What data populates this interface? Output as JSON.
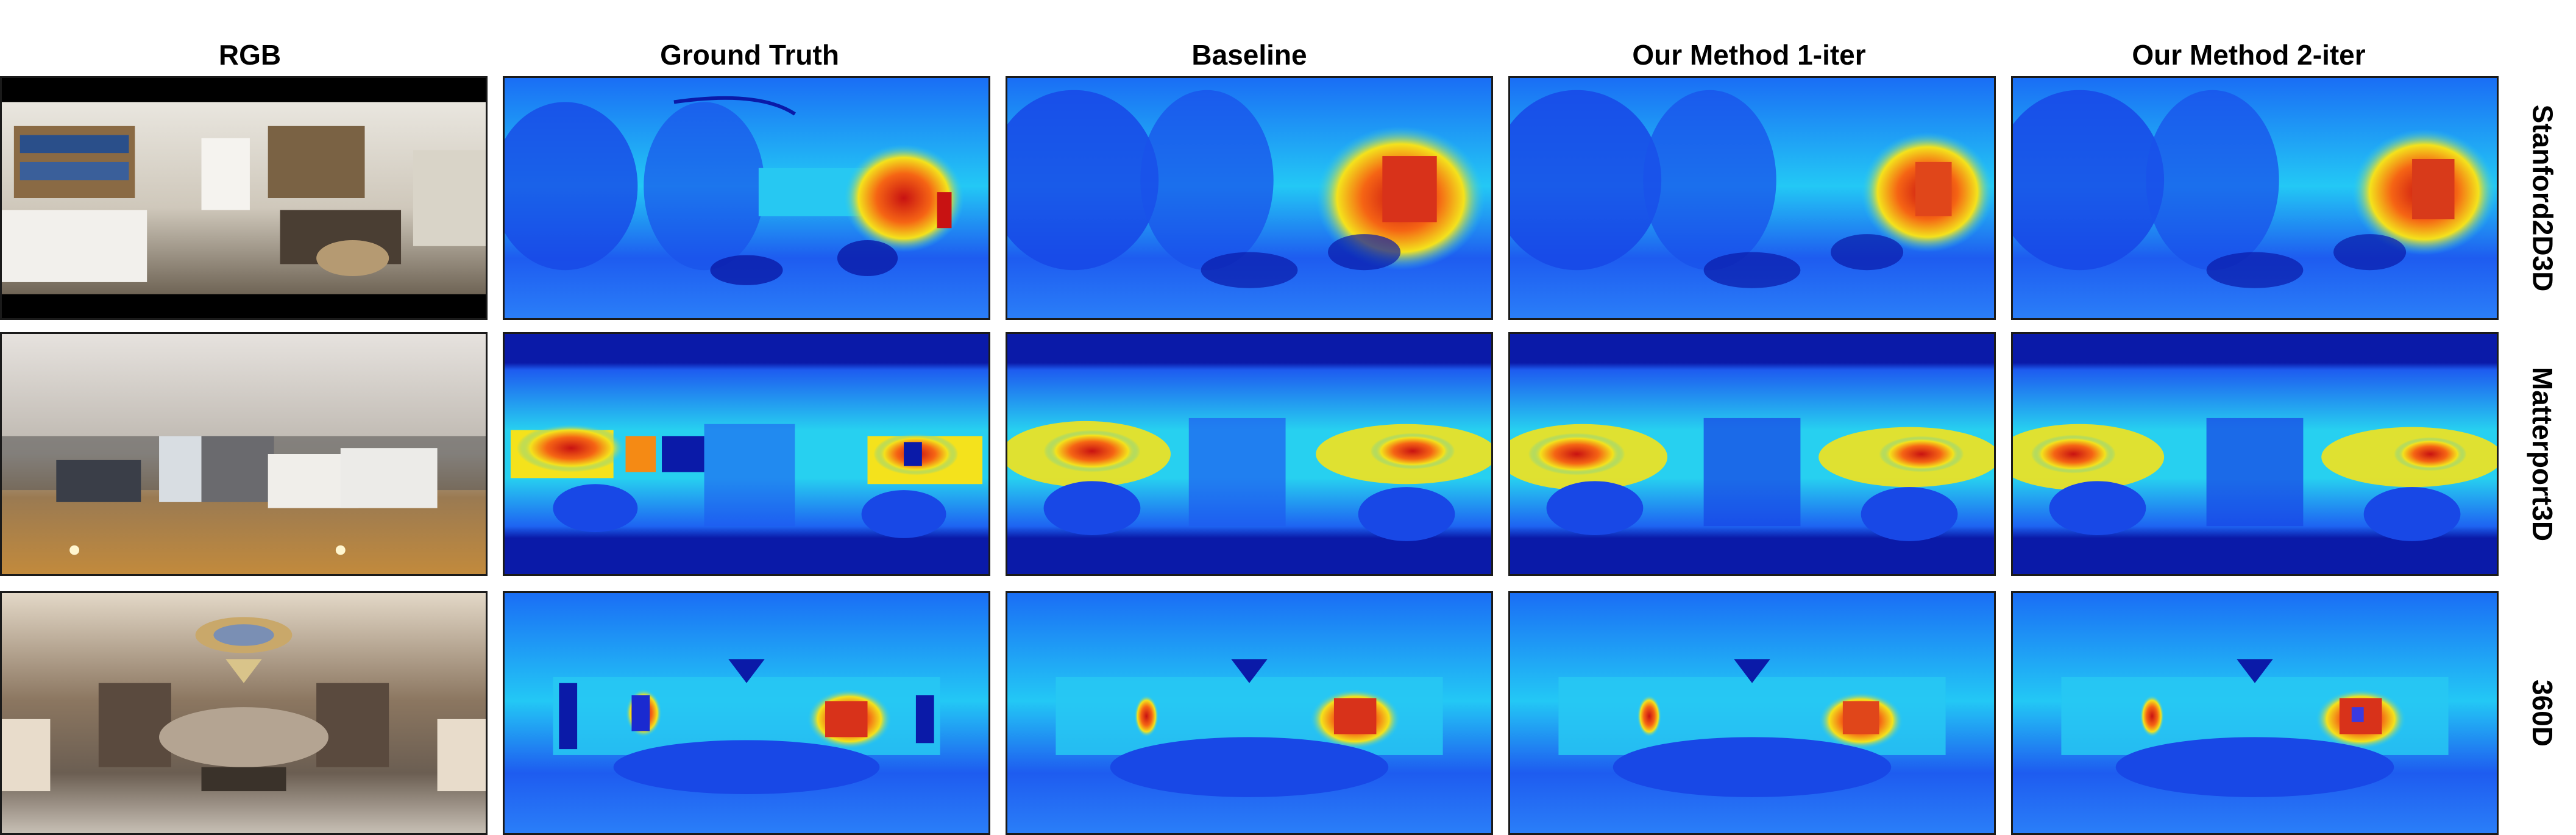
{
  "columns": [
    "RGB",
    "Ground Truth",
    "Baseline",
    "Our Method 1-iter",
    "Our Method 2-iter"
  ],
  "rows": [
    "Stanford2D3D",
    "Matterport3D",
    "360D"
  ],
  "colormap": {
    "deep": "#0a1aa8",
    "blue": "#1e5cf0",
    "cyan": "#23c8f5",
    "yellow": "#f4e21c",
    "orange": "#f58a14",
    "red": "#c81212"
  }
}
